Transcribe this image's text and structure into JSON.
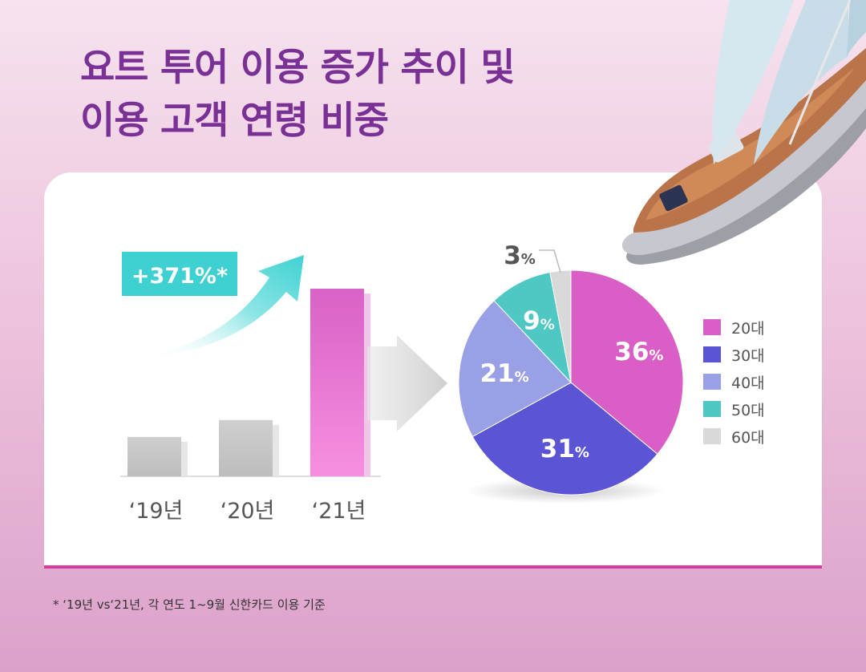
{
  "title": {
    "line1": "요트 투어 이용 증가 추이 및",
    "line2": "이용 고객 연령 비중"
  },
  "footnote": "* ‘19년 vs‘21년, 각 연도 1~9월 신한카드 이용 기준",
  "colors": {
    "title": "#7a3195",
    "accent_line": "#d63c9b",
    "growth_badge": "#3fd1d2",
    "bar_gray": "#c5c5c5",
    "bar_pink": "#e26fce"
  },
  "chart_data": [
    {
      "type": "bar",
      "categories": [
        "‘19년",
        "‘20년",
        "‘21년"
      ],
      "values": [
        21,
        30,
        100
      ],
      "annotation": "+371%*"
    },
    {
      "type": "pie",
      "categories": [
        "20대",
        "30대",
        "40대",
        "50대",
        "60대"
      ],
      "values": [
        36,
        31,
        21,
        9,
        3
      ],
      "labels": [
        "36",
        "31",
        "21",
        "9",
        "3"
      ],
      "unit": "%",
      "colors": [
        "#d95ec5",
        "#5b55d6",
        "#9aa0e6",
        "#4fc7c3",
        "#d9d9d9"
      ],
      "legend_position": "right"
    }
  ]
}
